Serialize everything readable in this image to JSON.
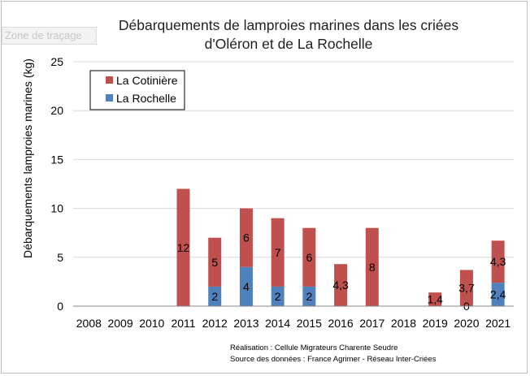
{
  "tooltip": "Zone de traçage",
  "credits": {
    "line1": "Réalisation : Cellule Migrateurs Charente Seudre",
    "line2": "Source des données : France Agrimer - Réseau Inter-Criées"
  },
  "chart_data": {
    "type": "bar",
    "stacked": true,
    "title_lines": [
      "Débarquements de lamproies marines dans les criées",
      "d'Oléron et de La Rochelle"
    ],
    "xlabel": "",
    "ylabel": "Débarquements lamproies marines  (kg)",
    "ylim": [
      0,
      25
    ],
    "yticks": [
      0,
      5,
      10,
      15,
      20,
      25
    ],
    "grid": true,
    "legend_position": "top-left",
    "categories": [
      "2008",
      "2009",
      "2010",
      "2011",
      "2012",
      "2013",
      "2014",
      "2015",
      "2016",
      "2017",
      "2018",
      "2019",
      "2020",
      "2021"
    ],
    "series": [
      {
        "name": "La Rochelle",
        "color": "#4f81bd",
        "values": [
          0,
          0,
          0,
          0,
          2,
          4,
          2,
          2,
          0,
          0,
          0,
          0,
          0,
          2.4
        ],
        "labels": [
          "",
          "",
          "",
          "",
          "2",
          "4",
          "2",
          "2",
          "",
          "",
          "",
          "",
          "0",
          "2,4"
        ]
      },
      {
        "name": "La Cotinière",
        "color": "#c0504d",
        "values": [
          0,
          0,
          0,
          12,
          5,
          6,
          7,
          6,
          4.3,
          8,
          0,
          1.4,
          3.7,
          4.3
        ],
        "labels": [
          "",
          "",
          "",
          "12",
          "5",
          "6",
          "7",
          "6",
          "4,3",
          "8",
          "",
          "1,4",
          "3,7",
          "4,3"
        ]
      }
    ],
    "legend_order": [
      "La Cotinière",
      "La Rochelle"
    ]
  }
}
